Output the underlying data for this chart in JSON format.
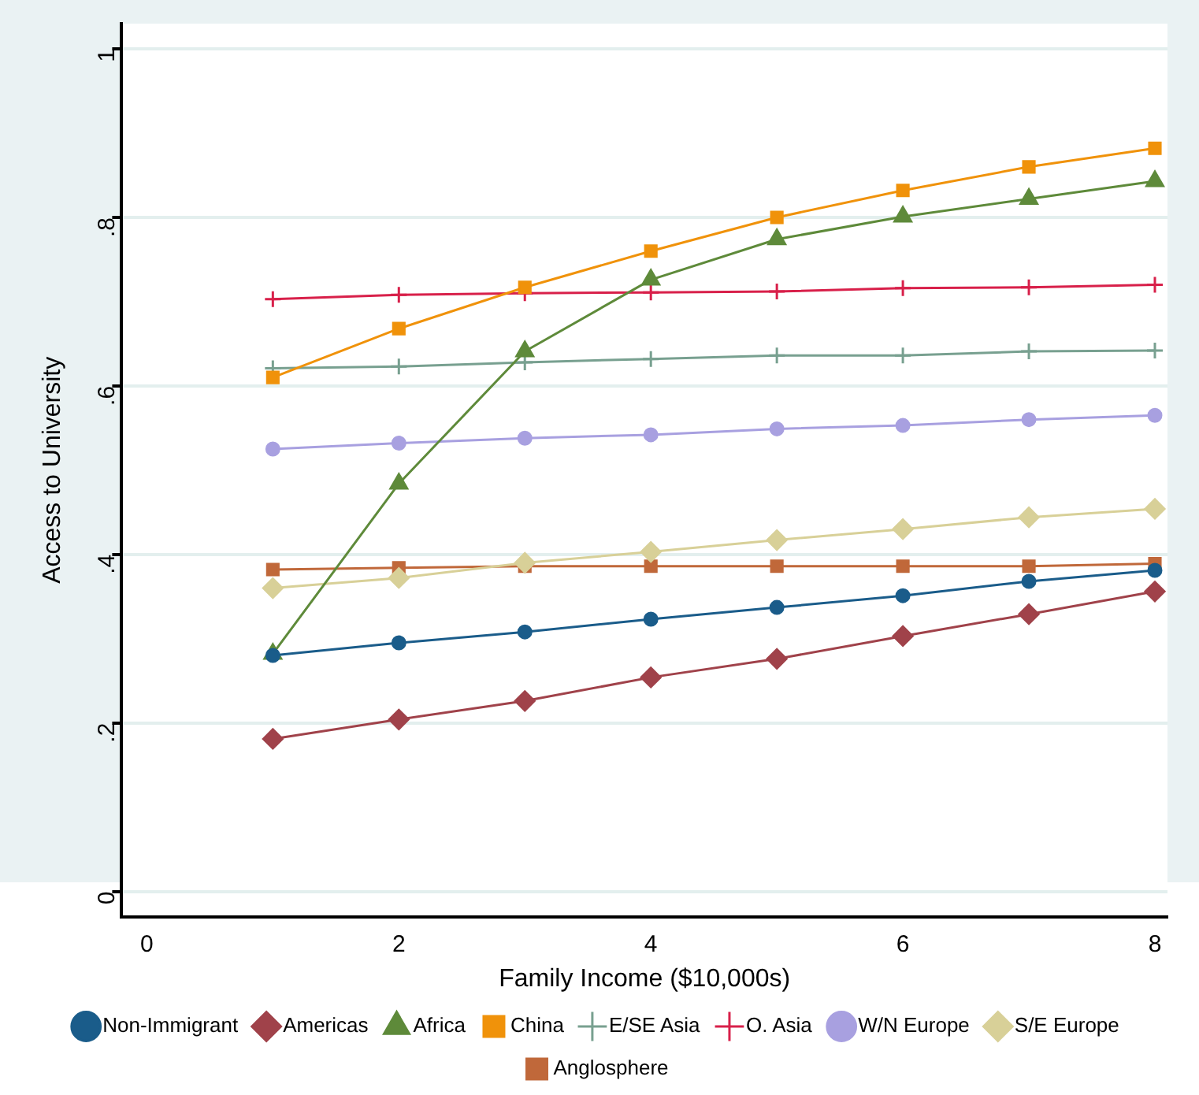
{
  "chart_data": {
    "type": "line",
    "xlabel": "Family Income ($10,000s)",
    "ylabel": "Access to University",
    "x": [
      1,
      2,
      3,
      4,
      5,
      6,
      7,
      8
    ],
    "xlim": [
      -0.2,
      8.1
    ],
    "xticks": [
      0,
      2,
      4,
      6,
      8
    ],
    "ylim": [
      -0.03,
      1.03
    ],
    "yticks": [
      {
        "value": 0,
        "label": "0"
      },
      {
        "value": 0.2,
        "label": ".2"
      },
      {
        "value": 0.4,
        "label": ".4"
      },
      {
        "value": 0.6,
        "label": ".6"
      },
      {
        "value": 0.8,
        "label": ".8"
      },
      {
        "value": 1,
        "label": "1"
      }
    ],
    "grid": "y",
    "legend": "bottom",
    "line_style": "solid",
    "series": [
      {
        "name": "Non-Immigrant",
        "color": "#1a5c8a",
        "marker": "circle",
        "values": [
          0.28,
          0.295,
          0.308,
          0.323,
          0.337,
          0.351,
          0.368,
          0.381
        ]
      },
      {
        "name": "Americas",
        "color": "#a0424a",
        "marker": "diamond",
        "values": [
          0.181,
          0.204,
          0.226,
          0.254,
          0.276,
          0.303,
          0.329,
          0.356
        ]
      },
      {
        "name": "Africa",
        "color": "#5e8a3a",
        "marker": "triangle",
        "values": [
          0.282,
          0.484,
          0.641,
          0.726,
          0.774,
          0.801,
          0.822,
          0.843
        ]
      },
      {
        "name": "China",
        "color": "#f0920a",
        "marker": "square",
        "values": [
          0.61,
          0.668,
          0.717,
          0.76,
          0.8,
          0.832,
          0.86,
          0.882
        ]
      },
      {
        "name": "E/SE Asia",
        "color": "#78a090",
        "marker": "cross",
        "values": [
          0.621,
          0.623,
          0.628,
          0.632,
          0.636,
          0.636,
          0.641,
          0.642
        ]
      },
      {
        "name": "O. Asia",
        "color": "#d8204a",
        "marker": "cross",
        "values": [
          0.703,
          0.708,
          0.71,
          0.711,
          0.712,
          0.716,
          0.717,
          0.72
        ]
      },
      {
        "name": "W/N Europe",
        "color": "#a8a0e0",
        "marker": "circle",
        "values": [
          0.525,
          0.532,
          0.538,
          0.542,
          0.549,
          0.553,
          0.56,
          0.565
        ]
      },
      {
        "name": "S/E Europe",
        "color": "#d8d098",
        "marker": "diamond",
        "values": [
          0.36,
          0.372,
          0.39,
          0.403,
          0.417,
          0.43,
          0.444,
          0.454
        ]
      },
      {
        "name": "Anglosphere",
        "color": "#c0683a",
        "marker": "square",
        "values": [
          0.382,
          0.384,
          0.386,
          0.386,
          0.386,
          0.386,
          0.386,
          0.389
        ]
      }
    ]
  }
}
